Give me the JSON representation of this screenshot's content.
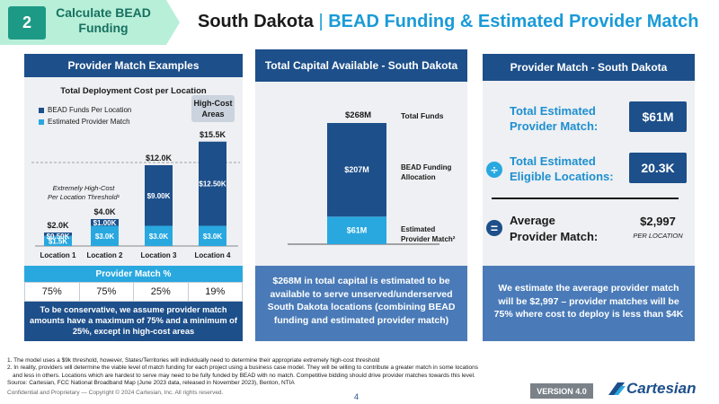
{
  "step": {
    "number": "2",
    "label_line1": "Calculate BEAD",
    "label_line2": "Funding"
  },
  "title": {
    "state": "South Dakota",
    "separator": "|",
    "subtitle": "BEAD Funding & Estimated Provider Match"
  },
  "left_panel": {
    "header": "Provider Match Examples",
    "chart_title": "Total Deployment Cost per Location",
    "legend": [
      {
        "label": "BEAD Funds Per Location",
        "color": "#1d4f8a"
      },
      {
        "label": "Estimated Provider Match",
        "color": "#29a8e0"
      }
    ],
    "high_cost_label_line1": "High-Cost",
    "high_cost_label_line2": "Areas",
    "threshold_line1": "Extremely High-Cost",
    "threshold_line2": "Per Location Threshold¹",
    "pct_header": "Provider Match %",
    "pct_values": [
      "75%",
      "75%",
      "25%",
      "19%"
    ],
    "note": "To be conservative, we assume provider match amounts have a maximum of 75% and a minimum of 25%, except in high-cost areas"
  },
  "chart_data": {
    "type": "bar",
    "title": "Total Deployment Cost per Location",
    "categories": [
      "Location 1",
      "Location 2",
      "Location 3",
      "Location 4"
    ],
    "series": [
      {
        "name": "Estimated Provider Match",
        "values": [
          1.5,
          3.0,
          3.0,
          3.0
        ],
        "labels": [
          "$1.5K",
          "$3.0K",
          "$3.0K",
          "$3.0K"
        ]
      },
      {
        "name": "BEAD Funds Per Location",
        "values": [
          0.5,
          1.0,
          9.0,
          12.5
        ],
        "labels": [
          "$0.50K",
          "$1.00K",
          "$9.00K",
          "$12.50K"
        ]
      }
    ],
    "totals": [
      "$2.0K",
      "$4.0K",
      "$12.0K",
      "$15.5K"
    ],
    "threshold": 9.0,
    "ylim": [
      0,
      16
    ]
  },
  "mid_panel": {
    "header": "Total Capital Available - South Dakota",
    "total_label": "$268M",
    "total_funds_label": "Total Funds",
    "bead_value": "$207M",
    "bead_label_line1": "BEAD Funding",
    "bead_label_line2": "Allocation",
    "match_value": "$61M",
    "match_label_line1": "Estimated",
    "match_label_line2": "Provider Match²",
    "bead_amount": 207,
    "match_amount": 61,
    "note": "$268M in total capital is estimated to be available to serve unserved/underserved South Dakota locations (combining BEAD funding and estimated provider match)"
  },
  "right_panel": {
    "header": "Provider Match - South Dakota",
    "rows": [
      {
        "label_line1": "Total Estimated",
        "label_line2": "Provider Match:",
        "value": "$61M"
      },
      {
        "label_line1": "Total Estimated",
        "label_line2": "Eligible Locations:",
        "value": "20.3K"
      }
    ],
    "avg_label_line1": "Average",
    "avg_label_line2": "Provider Match:",
    "avg_value": "$2,997",
    "avg_unit": "PER LOCATION",
    "note": "We estimate the average provider match will be $2,997 – provider matches will be 75% where cost to deploy is less than $4K"
  },
  "footnotes": [
    "1. The model uses a $9k threshold, however, States/Territories will individually need to determine their appropriate extremely high-cost threshold",
    "2. In reality, providers will determine the viable level of match funding for each project using a business case model. They will be willing to contribute a greater match in some locations",
    "and less in others. Locations which are hardest to serve may need to be fully funded by BEAD with no match. Competitive bidding should drive provider matches towards this level.",
    "Source: Cartesian, FCC National Broadband Map (June 2023 data, released in November 2023), Benton, NTIA"
  ],
  "confidential": "Confidential and Proprietary — Copyright © 2024 Cartesian, Inc. All rights reserved.",
  "page_number": "4",
  "version": "VERSION 4.0",
  "logo_text": "Cartesian",
  "colors": {
    "navy": "#1d4f8a",
    "cyan": "#29a8e0",
    "teal": "#1d9a86"
  }
}
